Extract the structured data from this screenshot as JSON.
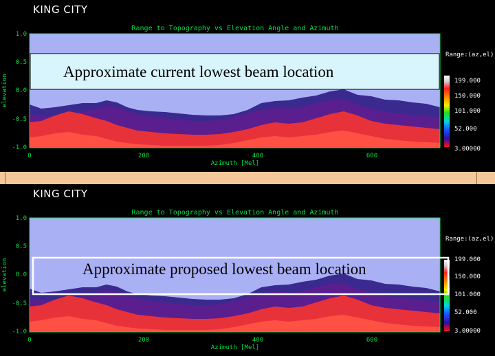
{
  "colors": {
    "sky": "#aab0f4",
    "axis": "#00e040",
    "annot_fill": "#d8f4fc",
    "separator": "#f5c89a",
    "terrain_far": "#3a2a90",
    "terrain_mid": "#5a1e8e",
    "terrain_near": "#e8323a",
    "terrain_hot": "#ff5044"
  },
  "chart_data": [
    {
      "type": "heatmap",
      "station": "KING CITY",
      "title": "Range to Topography vs Elevation Angle and Azimuth",
      "xlabel": "Azimuth [Mel]",
      "ylabel": "elevation",
      "xlim": [
        0,
        720
      ],
      "ylim": [
        -1.0,
        1.0
      ],
      "x_ticks": [
        "0",
        "200",
        "400",
        "600"
      ],
      "y_ticks": [
        "1.0",
        "0.5",
        "0.0",
        "-0.5",
        "-1.0"
      ],
      "colorbar": {
        "title": "Range:(az,el)",
        "labels": [
          "199.000",
          "150.000",
          "101.000",
          "52.000",
          "3.00000"
        ]
      },
      "annotation": {
        "text": "Approximate current lowest beam location",
        "el_range": [
          0.0,
          0.65
        ],
        "style": "filled"
      }
    },
    {
      "type": "heatmap",
      "station": "KING CITY",
      "title": "Range to Topography vs Elevation Angle and Azimuth",
      "xlabel": "Azimuth [Mel]",
      "ylabel": "elevation",
      "xlim": [
        0,
        720
      ],
      "ylim": [
        -1.0,
        1.0
      ],
      "x_ticks": [
        "0",
        "200",
        "400",
        "600"
      ],
      "y_ticks": [
        "1.0",
        "0.5",
        "0.0",
        "-0.5",
        "-1.0"
      ],
      "colorbar": {
        "title": "Range:(az,el)",
        "labels": [
          "199.000",
          "150.000",
          "101.000",
          "52.000",
          "3.00000"
        ]
      },
      "annotation": {
        "text": "Approximate proposed lowest beam location",
        "el_range": [
          -0.4,
          0.35
        ],
        "style": "outline"
      }
    }
  ]
}
